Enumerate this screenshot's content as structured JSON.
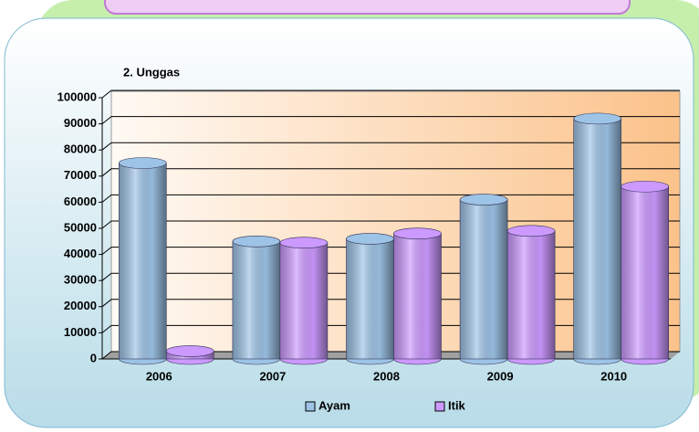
{
  "chart_data": {
    "type": "bar",
    "title": "2. Unggas",
    "categories": [
      "2006",
      "2007",
      "2008",
      "2009",
      "2010"
    ],
    "series": [
      {
        "name": "Ayam",
        "color": "#9dc3e6",
        "values": [
          75000,
          45000,
          46000,
          61000,
          92000
        ]
      },
      {
        "name": "Itik",
        "color": "#cc99ff",
        "values": [
          3000,
          44500,
          48000,
          49000,
          66000
        ]
      }
    ],
    "ylim": [
      0,
      100000
    ],
    "yticks": [
      0,
      10000,
      20000,
      30000,
      40000,
      50000,
      60000,
      70000,
      80000,
      90000,
      100000
    ],
    "grid": true,
    "legend": "bottom"
  }
}
